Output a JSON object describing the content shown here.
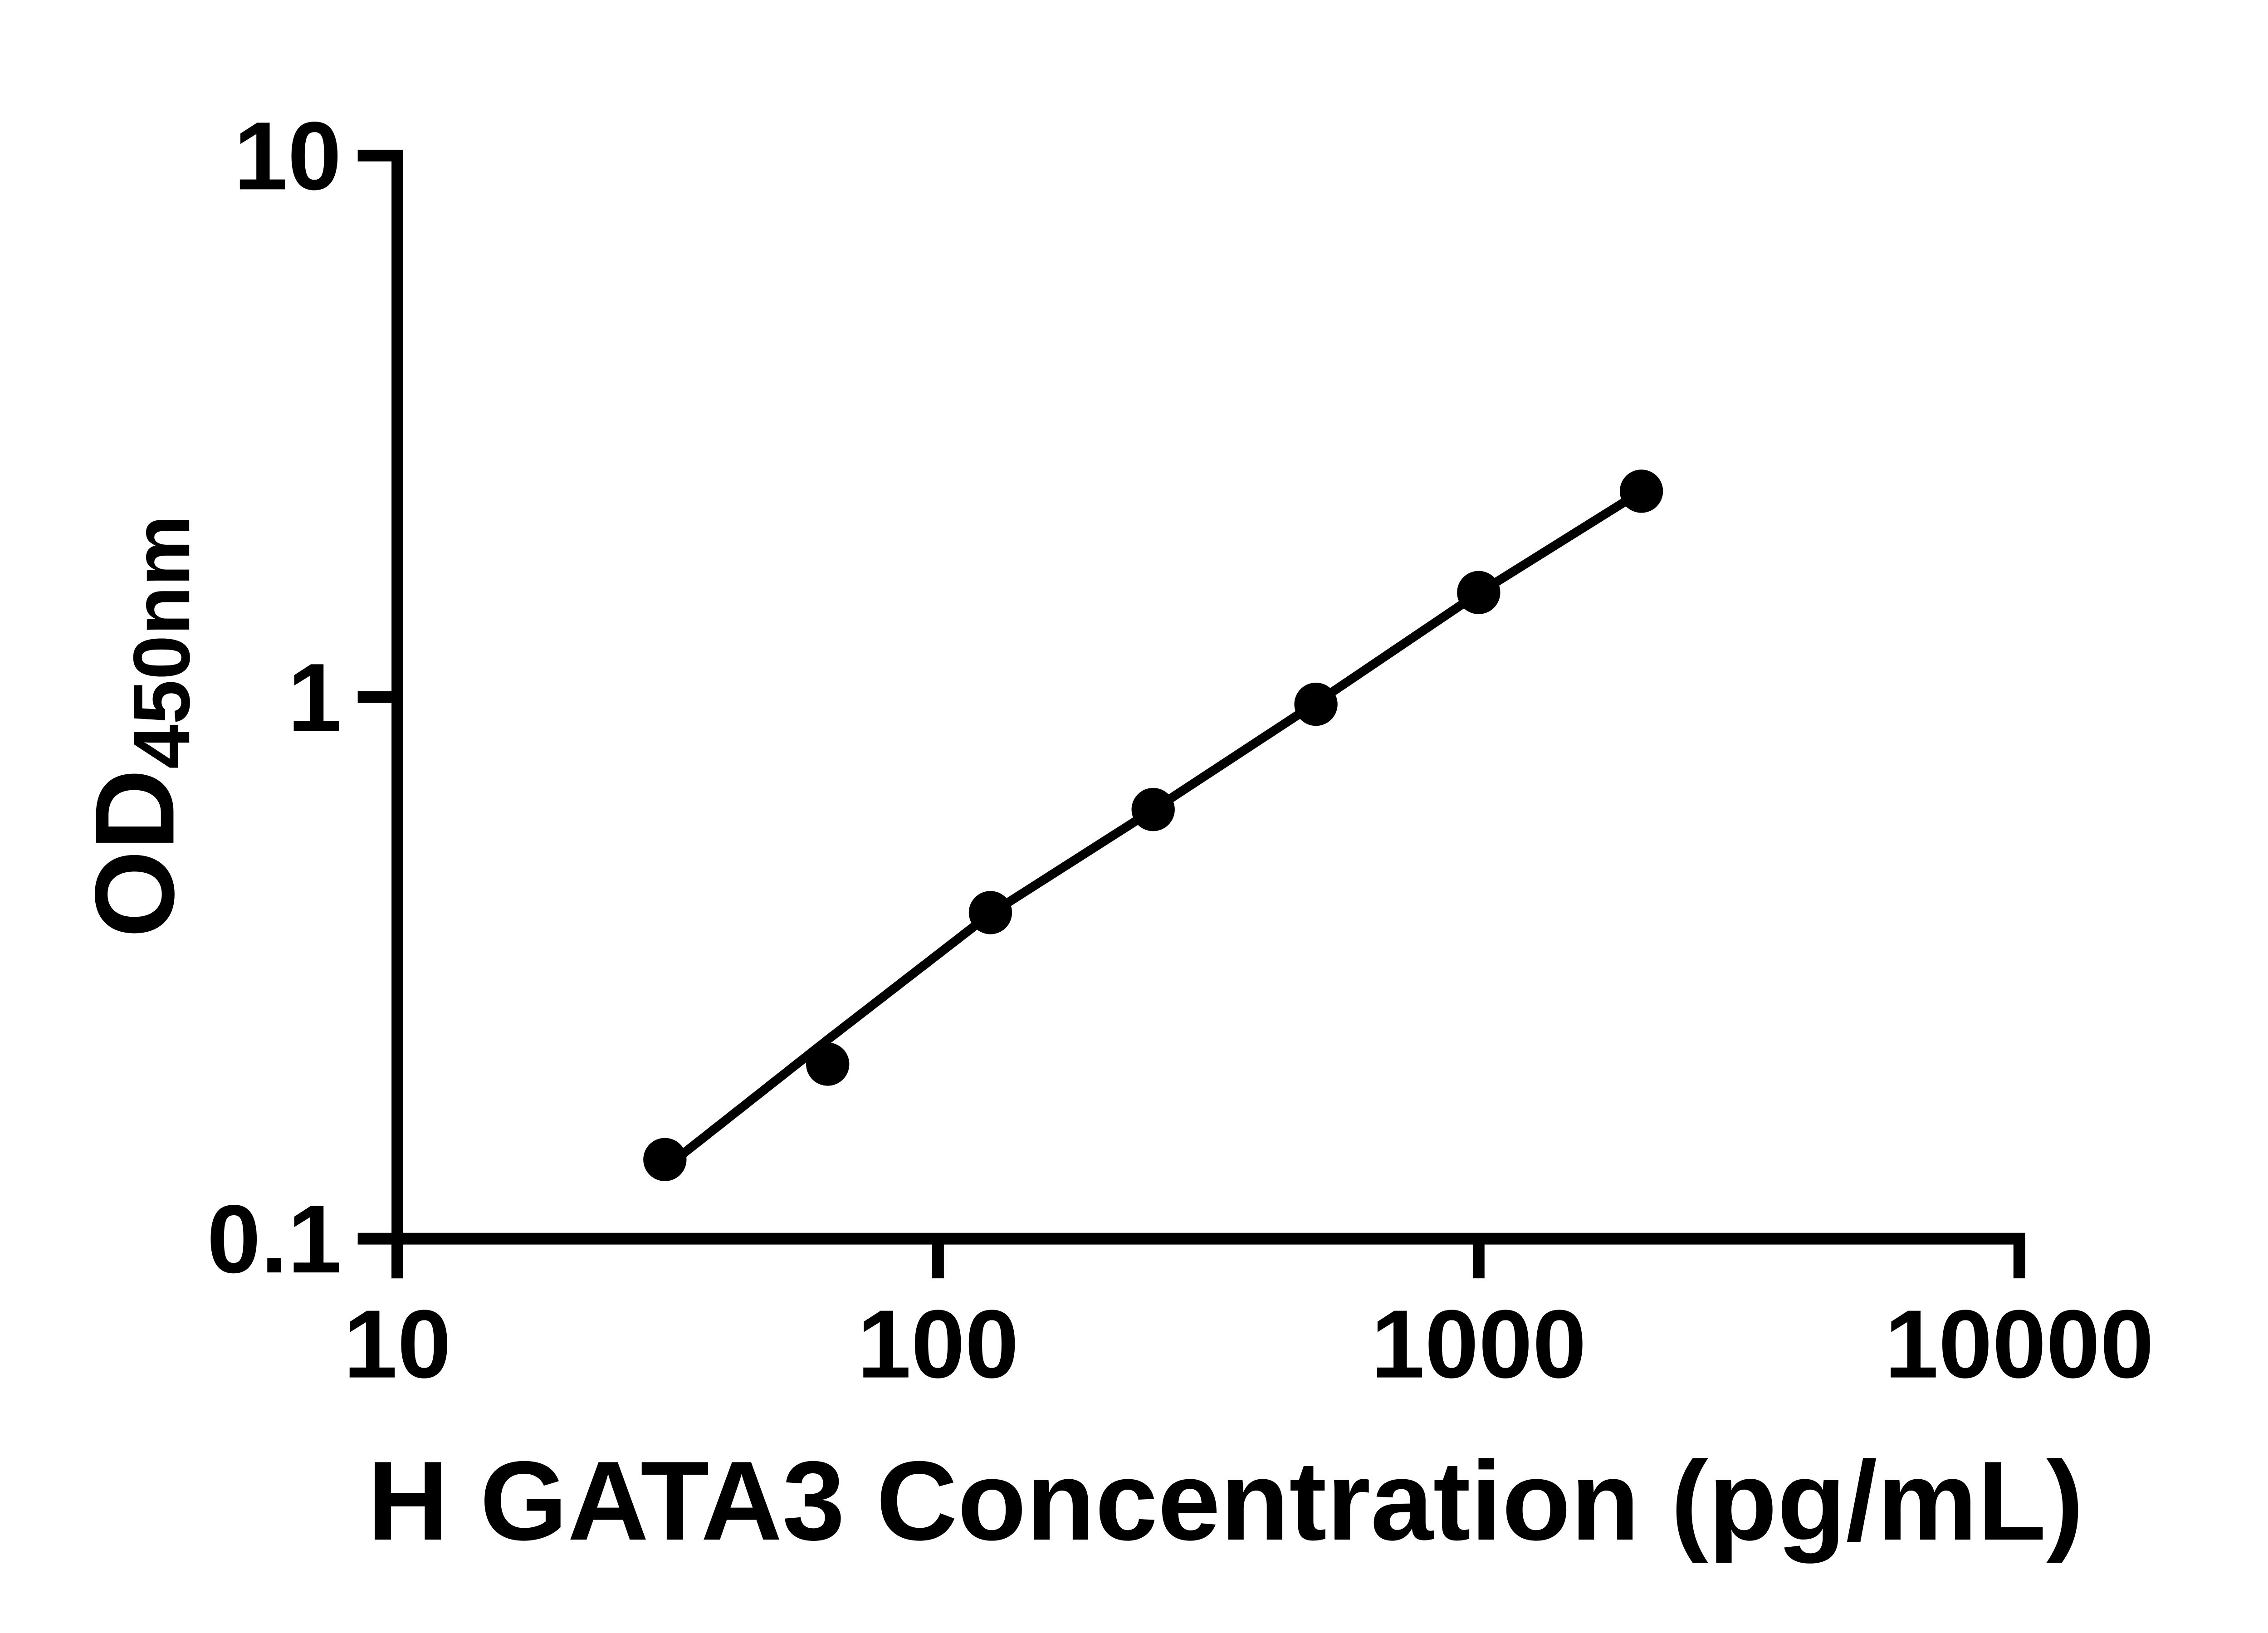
{
  "figure": {
    "background_color": "#ffffff",
    "ink_color": "#000000"
  },
  "chart_data": {
    "type": "scatter",
    "subtype": "log-log standard curve with fitted line",
    "title": "",
    "xlabel": "H GATA3 Concentration (pg/mL)",
    "ylabel_main": "OD",
    "ylabel_sub": "450nm",
    "x_scale": "log10",
    "y_scale": "log10",
    "xlim": [
      10,
      10000
    ],
    "ylim": [
      0.1,
      10
    ],
    "grid": false,
    "legend": null,
    "x_ticks": [
      {
        "value": 10,
        "label": "10"
      },
      {
        "value": 100,
        "label": "100"
      },
      {
        "value": 1000,
        "label": "1000"
      },
      {
        "value": 10000,
        "label": "10000"
      }
    ],
    "y_ticks": [
      {
        "value": 10,
        "label": "10"
      },
      {
        "value": 1,
        "label": "1"
      },
      {
        "value": 0.1,
        "label": "0.1"
      }
    ],
    "marker": {
      "shape": "circle",
      "color": "#000000"
    },
    "points": [
      {
        "x": 31.25,
        "od": 0.14
      },
      {
        "x": 62.5,
        "od": 0.21
      },
      {
        "x": 125,
        "od": 0.4
      },
      {
        "x": 250,
        "od": 0.62
      },
      {
        "x": 500,
        "od": 0.97
      },
      {
        "x": 1000,
        "od": 1.56
      },
      {
        "x": 2000,
        "od": 2.4
      }
    ],
    "fit_line": [
      {
        "x": 31.25,
        "od": 0.135
      },
      {
        "x": 62.5,
        "od": 0.233
      },
      {
        "x": 125,
        "od": 0.398
      },
      {
        "x": 250,
        "od": 0.619
      },
      {
        "x": 500,
        "od": 0.975
      },
      {
        "x": 1000,
        "od": 1.556
      },
      {
        "x": 2000,
        "od": 2.398
      }
    ]
  }
}
